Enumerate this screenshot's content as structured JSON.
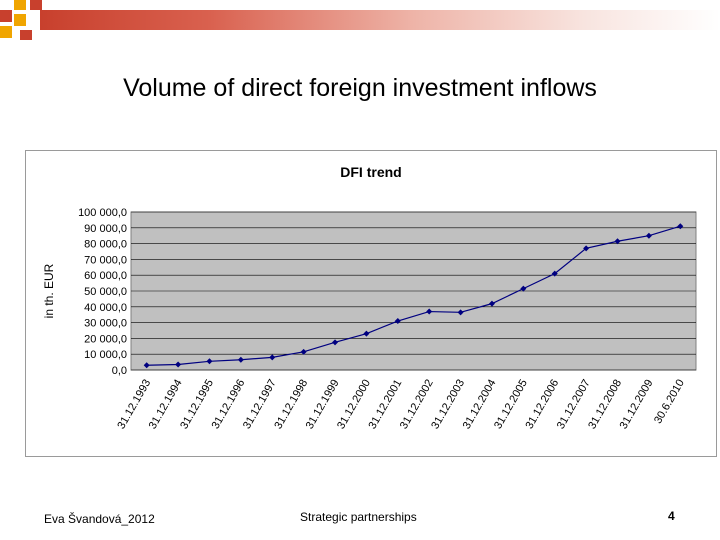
{
  "slide": {
    "title": "Volume of direct foreign investment inflows",
    "footer_author": "Eva Švandová_2012",
    "footer_topic": "Strategic partnerships",
    "page_number": "4"
  },
  "colors": {
    "accent_orange": "#f0a500",
    "accent_red": "#c8402d",
    "plot_background": "#c0c0c0",
    "series_line": "#000080"
  },
  "chart_data": {
    "type": "line",
    "title": "DFI trend",
    "xlabel": "",
    "ylabel": "in th. EUR",
    "ylim": [
      0,
      100000
    ],
    "ytick_values": [
      0,
      10000,
      20000,
      30000,
      40000,
      50000,
      60000,
      70000,
      80000,
      90000,
      100000
    ],
    "ytick_labels": [
      "0,0",
      "10 000,0",
      "20 000,0",
      "30 000,0",
      "40 000,0",
      "50 000,0",
      "60 000,0",
      "70 000,0",
      "80 000,0",
      "90 000,0",
      "100 000,0"
    ],
    "grid": true,
    "legend": "none",
    "categories": [
      "31.12.1993",
      "31.12.1994",
      "31.12.1995",
      "31.12.1996",
      "31.12.1997",
      "31.12.1998",
      "31.12.1999",
      "31.12.2000",
      "31.12.2001",
      "31.12.2002",
      "31.12.2003",
      "31.12.2004",
      "31.12.2005",
      "31.12.2006",
      "31.12.2007",
      "31.12.2008",
      "31.12.2009",
      "30.6.2010"
    ],
    "series": [
      {
        "values": [
          3000,
          3500,
          5500,
          6500,
          8000,
          11500,
          17500,
          23000,
          31000,
          37000,
          36500,
          42000,
          51500,
          61000,
          77000,
          81500,
          85000,
          91000
        ]
      }
    ]
  }
}
